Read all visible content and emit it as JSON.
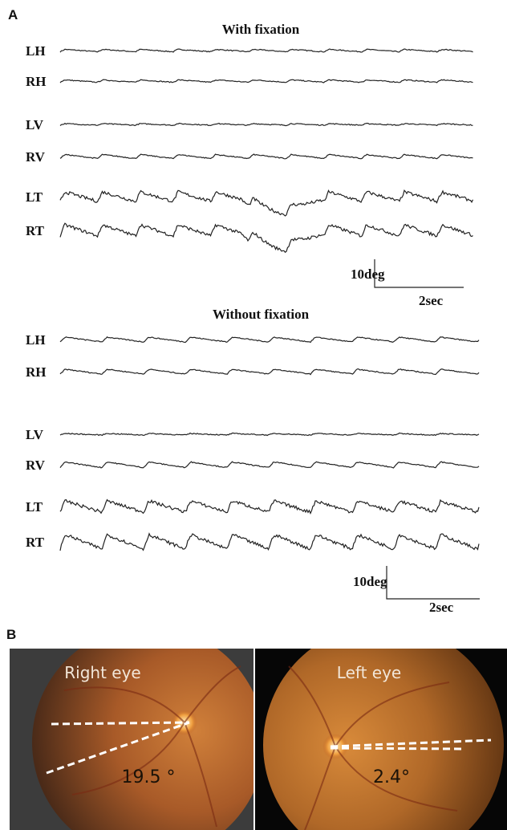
{
  "panel_a": {
    "label": "A",
    "sections": [
      {
        "title": "With fixation",
        "traces": [
          "LH",
          "RH",
          "LV",
          "RV",
          "LT",
          "RT"
        ],
        "scale_amplitude": "10deg",
        "scale_time": "2sec"
      },
      {
        "title": "Without fixation",
        "traces": [
          "LH",
          "RH",
          "LV",
          "RV",
          "LT",
          "RT"
        ],
        "scale_amplitude": "10deg",
        "scale_time": "2sec"
      }
    ]
  },
  "panel_b": {
    "label": "B",
    "images": [
      {
        "label": "Right eye",
        "angle": "19.5 °"
      },
      {
        "label": "Left eye",
        "angle": "2.4°"
      }
    ]
  }
}
